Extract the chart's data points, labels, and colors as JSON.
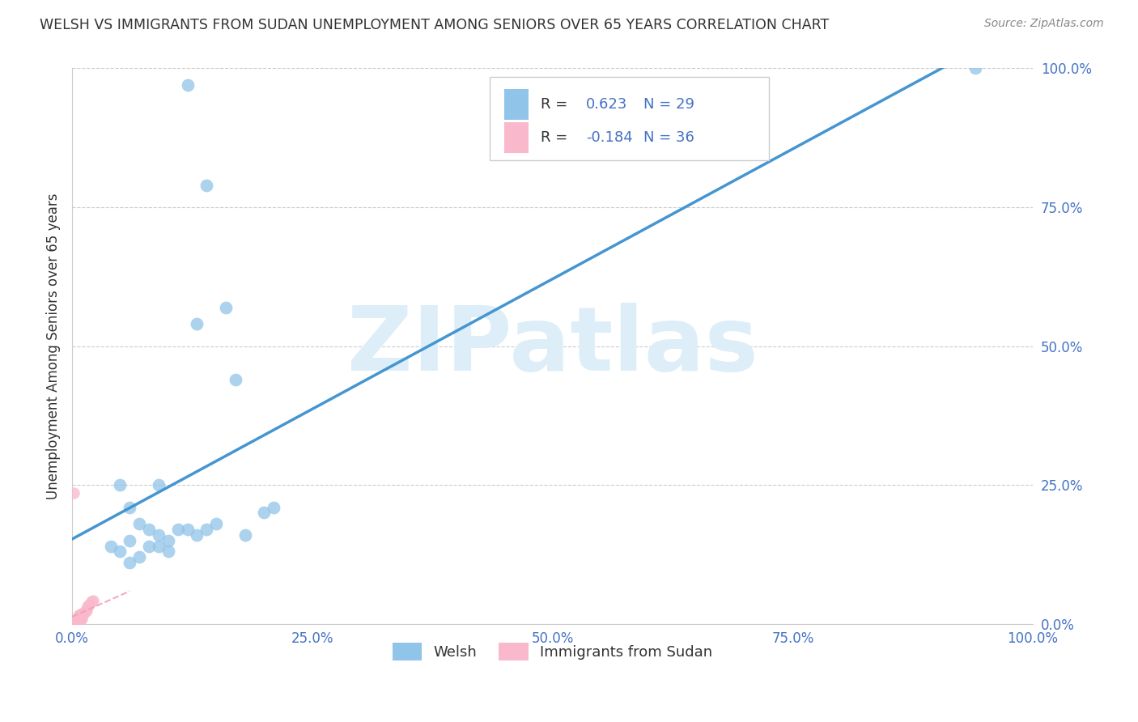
{
  "title": "WELSH VS IMMIGRANTS FROM SUDAN UNEMPLOYMENT AMONG SENIORS OVER 65 YEARS CORRELATION CHART",
  "source": "Source: ZipAtlas.com",
  "ylabel": "Unemployment Among Seniors over 65 years",
  "xlim": [
    0.0,
    1.0
  ],
  "ylim": [
    0.0,
    1.0
  ],
  "xticks": [
    0.0,
    0.25,
    0.5,
    0.75,
    1.0
  ],
  "yticks": [
    0.0,
    0.25,
    0.5,
    0.75,
    1.0
  ],
  "xticklabels": [
    "0.0%",
    "25.0%",
    "50.0%",
    "75.0%",
    "100.0%"
  ],
  "yticklabels": [
    "0.0%",
    "25.0%",
    "50.0%",
    "75.0%",
    "100.0%"
  ],
  "welsh_color": "#90c4e8",
  "sudan_color": "#f9b8cb",
  "welsh_R": 0.623,
  "welsh_N": 29,
  "sudan_R": -0.184,
  "sudan_N": 36,
  "welsh_line_color": "#4495d0",
  "sudan_line_color": "#f4a0b8",
  "watermark_text": "ZIPatlas",
  "watermark_color": "#ddeef8",
  "welsh_scatter_x": [
    0.12,
    0.14,
    0.16,
    0.13,
    0.17,
    0.05,
    0.06,
    0.07,
    0.08,
    0.09,
    0.1,
    0.06,
    0.09,
    0.1,
    0.11,
    0.12,
    0.13,
    0.14,
    0.15,
    0.18,
    0.04,
    0.05,
    0.07,
    0.06,
    0.08,
    0.09,
    0.94,
    0.2,
    0.21
  ],
  "welsh_scatter_y": [
    0.97,
    0.79,
    0.57,
    0.54,
    0.44,
    0.25,
    0.21,
    0.18,
    0.17,
    0.16,
    0.15,
    0.15,
    0.14,
    0.13,
    0.17,
    0.17,
    0.16,
    0.17,
    0.18,
    0.16,
    0.14,
    0.13,
    0.12,
    0.11,
    0.14,
    0.25,
    1.0,
    0.2,
    0.21
  ],
  "sudan_scatter_x": [
    0.005,
    0.01,
    0.012,
    0.003,
    0.008,
    0.002,
    0.007,
    0.015,
    0.009,
    0.004,
    0.011,
    0.018,
    0.002,
    0.006,
    0.001,
    0.013,
    0.02,
    0.008,
    0.009,
    0.003,
    0.004,
    0.01,
    0.002,
    0.007,
    0.014,
    0.001,
    0.008,
    0.016,
    0.007,
    0.002,
    0.009,
    0.001,
    0.006,
    0.002,
    0.022,
    0.003
  ],
  "sudan_scatter_y": [
    0.005,
    0.01,
    0.018,
    0.003,
    0.008,
    0.002,
    0.015,
    0.025,
    0.009,
    0.003,
    0.018,
    0.035,
    0.001,
    0.008,
    0.002,
    0.022,
    0.04,
    0.016,
    0.009,
    0.002,
    0.008,
    0.018,
    0.001,
    0.009,
    0.025,
    0.001,
    0.015,
    0.032,
    0.008,
    0.001,
    0.015,
    0.001,
    0.008,
    0.235,
    0.042,
    0.002
  ],
  "background_color": "#ffffff",
  "grid_color": "#cccccc",
  "title_color": "#333333",
  "axis_label_color": "#4472c4",
  "legend_R_color": "#4472c4"
}
